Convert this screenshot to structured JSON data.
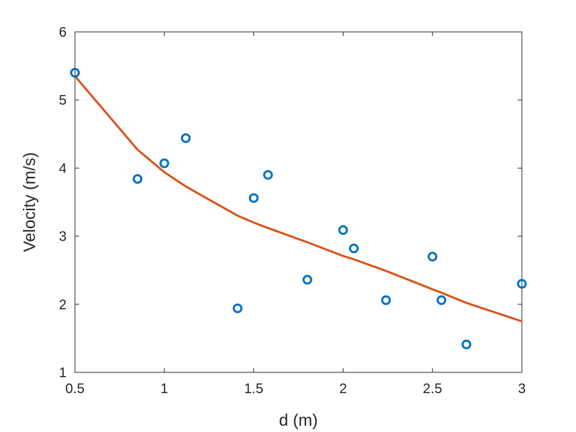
{
  "chart_data": {
    "type": "scatter",
    "xlabel": "d (m)",
    "ylabel": "Velocity (m/s)",
    "xlim": [
      0.5,
      3
    ],
    "ylim": [
      1,
      6
    ],
    "xticks": [
      "0.5",
      "1",
      "1.5",
      "2",
      "2.5",
      "3"
    ],
    "yticks": [
      "1",
      "2",
      "3",
      "4",
      "5",
      "6"
    ],
    "grid": false,
    "series": [
      {
        "type": "scatter",
        "color": "#0072BD",
        "marker": "circle",
        "x": [
          0.5,
          0.85,
          1.0,
          1.12,
          1.41,
          1.5,
          1.58,
          1.8,
          2.0,
          2.06,
          2.24,
          2.5,
          2.55,
          2.69,
          3.0
        ],
        "y": [
          5.4,
          3.84,
          4.07,
          4.44,
          1.94,
          3.56,
          3.9,
          2.36,
          3.09,
          2.82,
          2.06,
          2.7,
          2.06,
          1.41,
          2.3
        ]
      },
      {
        "type": "line",
        "color": "#D95319",
        "x": [
          0.5,
          0.85,
          1.0,
          1.12,
          1.41,
          1.5,
          1.58,
          1.8,
          2.0,
          2.06,
          2.24,
          2.5,
          2.55,
          2.69,
          3.0
        ],
        "y": [
          5.35,
          4.27,
          3.94,
          3.73,
          3.3,
          3.2,
          3.12,
          2.91,
          2.71,
          2.66,
          2.49,
          2.22,
          2.17,
          2.02,
          1.75
        ]
      }
    ]
  }
}
